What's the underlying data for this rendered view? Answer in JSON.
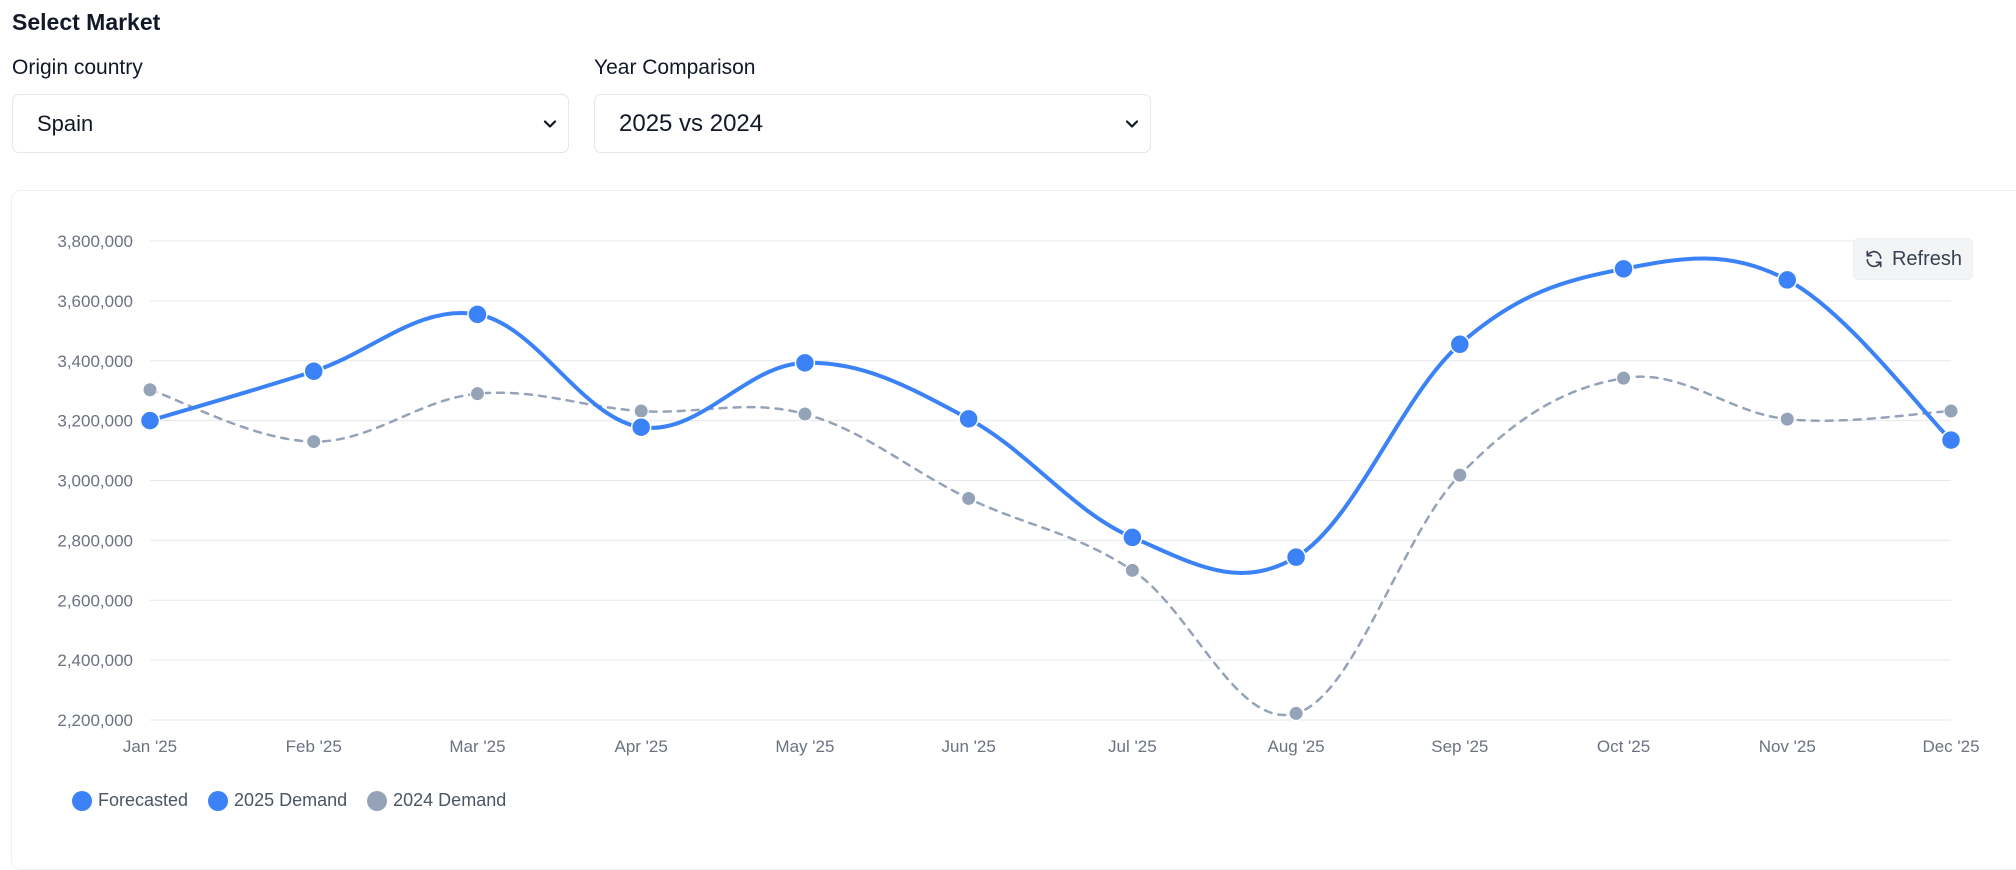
{
  "header": {
    "title": "Select Market"
  },
  "filters": {
    "origin": {
      "label": "Origin country",
      "value": "Spain"
    },
    "year": {
      "label": "Year Comparison",
      "value": "2025 vs 2024"
    }
  },
  "toolbar": {
    "refresh_label": "Refresh"
  },
  "colors": {
    "primary": "#3b82f6",
    "secondary": "#94a3b8",
    "grid": "#e5e7eb"
  },
  "chart_data": {
    "type": "line",
    "categories": [
      "Jan '25",
      "Feb '25",
      "Mar '25",
      "Apr '25",
      "May '25",
      "Jun '25",
      "Jul '25",
      "Aug '25",
      "Sep '25",
      "Oct '25",
      "Nov '25",
      "Dec '25"
    ],
    "series": [
      {
        "name": "2025 Demand",
        "style": "solid",
        "color": "#3b82f6",
        "values": [
          3200000,
          3365000,
          3555000,
          3178000,
          3393000,
          3206000,
          2810000,
          2744000,
          3455000,
          3707000,
          3670000,
          3135000
        ]
      },
      {
        "name": "2024 Demand",
        "style": "dashed",
        "color": "#94a3b8",
        "values": [
          3303000,
          3130000,
          3290000,
          3232000,
          3222000,
          2940000,
          2700000,
          2222000,
          3018000,
          3342000,
          3205000,
          3232000
        ]
      }
    ],
    "ylim": [
      2200000,
      3800000
    ],
    "yticks": [
      2200000,
      2400000,
      2600000,
      2800000,
      3000000,
      3200000,
      3400000,
      3600000,
      3800000
    ],
    "grid": true,
    "legend": {
      "placement": "bottom-left",
      "items": [
        {
          "label": "Forecasted",
          "color": "#3b82f6"
        },
        {
          "label": "2025 Demand",
          "color": "#3b82f6"
        },
        {
          "label": "2024 Demand",
          "color": "#94a3b8"
        }
      ]
    }
  }
}
